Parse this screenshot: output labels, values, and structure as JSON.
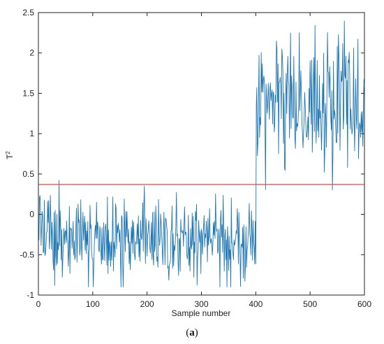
{
  "caption": {
    "open": "(",
    "letter": "a",
    "close": ")"
  },
  "chart_data": {
    "type": "line",
    "title": "",
    "xlabel": "Sample number",
    "ylabel": "T",
    "ylabel_superscript": "2",
    "xlim": [
      0,
      600
    ],
    "ylim": [
      -1,
      2.5
    ],
    "xticks": [
      0,
      100,
      200,
      300,
      400,
      500,
      600
    ],
    "yticks": [
      -1,
      -0.5,
      0,
      0.5,
      1,
      1.5,
      2,
      2.5
    ],
    "ytick_labels": [
      "-1",
      "-0.5",
      "0",
      "0.5",
      "1",
      "1.5",
      "2",
      "2.5"
    ],
    "grid": false,
    "series": [
      {
        "color": "#1f77b4",
        "x_start": 1,
        "x_end": 600,
        "segments": [
          {
            "x_from": 1,
            "x_to": 400,
            "mean": -0.3,
            "std": 0.26,
            "min": -0.9,
            "max": 0.42
          },
          {
            "x_from": 401,
            "x_to": 600,
            "mean": 1.35,
            "std": 0.42,
            "min": 0.12,
            "max": 2.42
          }
        ]
      },
      {
        "color": "#e8473f",
        "type": "hline",
        "y": 0.37
      }
    ]
  }
}
